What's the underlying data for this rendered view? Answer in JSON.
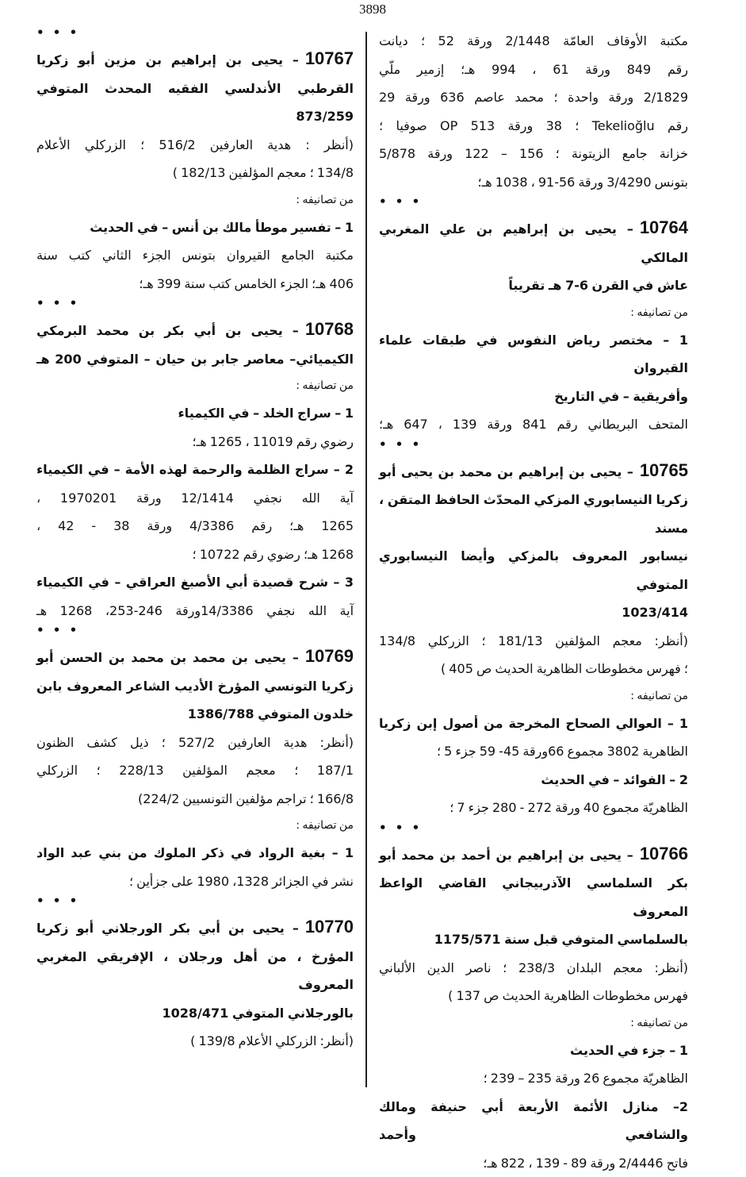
{
  "page_number": "3898",
  "dots": "• • •",
  "right_column": [
    {
      "t": "n",
      "text": "مكتبة الأوقاف العامّة 2/1448 ورقة 52 ؛ ديانت"
    },
    {
      "t": "n",
      "text": "رقم 849 ورقة 61 ، 994 هـ؛ إزمير ملّي"
    },
    {
      "t": "n",
      "text": "2/1829 ورقة واحدة ؛ محمد عاصم 636 ورقة 29"
    },
    {
      "t": "n",
      "text": "رقم Tekelioğlu ؛ 38 ورقة 513 OP صوفيا ؛"
    },
    {
      "t": "n",
      "text": "خزانة جامع الزيتونة ؛ 156 – 122 ورقة 5/878"
    },
    {
      "t": "s",
      "text": "بتونس 3/4290 ورقة 56-91 ، 1038 هـ؛"
    },
    {
      "t": "d"
    },
    {
      "t": "h",
      "num": "10764",
      "text": "– يحيى بن إبراهيم بن علي المغربي المالكي"
    },
    {
      "t": "bs",
      "text": "عاش في القرن 6-7 هـ تقريباً"
    },
    {
      "t": "m",
      "text": "من تصانيفه :"
    },
    {
      "t": "b",
      "text": "1 – مختصر رياض النفوس في طبقات علماء القيروان"
    },
    {
      "t": "bs",
      "text": "وأفريقية – في التاريخ"
    },
    {
      "t": "n",
      "text": "المتحف البريطاني رقم 841 ورقة 139 ، 647 هـ؛"
    },
    {
      "t": "d"
    },
    {
      "t": "h",
      "num": "10765",
      "text": "– يحيى بن إبراهيم بن محمد بن يحيى أبو"
    },
    {
      "t": "b",
      "text": "زكريا النيسابوري المزكي المحدّث الحافظ المتقن ، مسند"
    },
    {
      "t": "b",
      "text": "نيسابور المعروف بالمزكي وأيضا النيسابوري المتوفي"
    },
    {
      "t": "bs",
      "text": "1023/414"
    },
    {
      "t": "n",
      "text": "(أنظر: معجم المؤلفين 181/13 ؛ الزركلي 134/8"
    },
    {
      "t": "s",
      "text": "؛ فهرس مخطوطات الظاهرية الحديث ص 405 )"
    },
    {
      "t": "m",
      "text": "من تصانيفه :"
    },
    {
      "t": "b",
      "text": "1 – العوالي الصحاح المخرجة من أصول إبن زكريا"
    },
    {
      "t": "s",
      "text": "الظاهرية 3802 مجموع 66ورقة 45- 59 جزء 5 ؛"
    },
    {
      "t": "bs",
      "text": "2 – الفوائد – في الحديث"
    },
    {
      "t": "s",
      "text": "الظاهريّة مجموع 40 ورقة 272 - 280 جزء 7 ؛"
    },
    {
      "t": "d"
    },
    {
      "t": "h",
      "num": "10766",
      "text": "– يحيى بن إبراهيم بن أحمد بن محمد أبو"
    },
    {
      "t": "b",
      "text": "بكر السلماسي الآذربيجاني القاضي الواعظ المعروف"
    },
    {
      "t": "bs",
      "text": "بالسلماسي المتوفي قبل سنة 1175/571"
    },
    {
      "t": "n",
      "text": "(أنظر: معجم البلدان 238/3 ؛ ناصر الدين الألباني"
    },
    {
      "t": "s",
      "text": "فهرس مخطوطات الظاهرية الحديث ص 137 )"
    },
    {
      "t": "m",
      "text": "من تصانيفه :"
    },
    {
      "t": "bs",
      "text": "1 – جزء في الحديث"
    },
    {
      "t": "s",
      "text": "الظاهريّة مجموع 26 ورقة 235 – 239 ؛"
    },
    {
      "t": "b",
      "text": "2– منازل الأئمة الأربعة أبي حنيفة ومالك والشافعي وأحمد"
    },
    {
      "t": "s",
      "text": "فاتح 2/4446 ورقة 89 - 139 ، 822 هـ؛"
    }
  ],
  "left_column": [
    {
      "t": "d"
    },
    {
      "t": "h",
      "num": "10767",
      "text": "– يحيى بن إبراهيم بن مزين أبو زكريا"
    },
    {
      "t": "bs",
      "text": "القرطبي الأندلسي الفقيه المحدث المتوفي 873/259"
    },
    {
      "t": "n",
      "text": "(أنظر : هدية العارفين 516/2 ؛ الزركلي الأعلام"
    },
    {
      "t": "s",
      "text": "134/8 ؛ معجم المؤلفين 182/13 )"
    },
    {
      "t": "m",
      "text": "من تصانيفه :"
    },
    {
      "t": "bs",
      "text": "1 – تفسير موطأ مالك بن أنس – في الحديث"
    },
    {
      "t": "n",
      "text": "مكتبة الجامع القيروان بتونس الجزء الثاني كتب سنة"
    },
    {
      "t": "s",
      "text": "406 هـ؛ الجزء الخامس كتب سنة 399 هـ؛"
    },
    {
      "t": "d"
    },
    {
      "t": "h",
      "num": "10768",
      "text": "– يحيى بن أبي بكر بن محمد البرمكي"
    },
    {
      "t": "b",
      "text": "الكيميائي– معاصر جابر بن حيان – المتوفي 200 هـ"
    },
    {
      "t": "m",
      "text": "من تصانيفه :"
    },
    {
      "t": "bs",
      "text": "1 – سراج الخلد – في الكيمياء"
    },
    {
      "t": "s",
      "text": "رضوي رقم 11019 ، 1265 هـ؛"
    },
    {
      "t": "b",
      "text": "2 – سراج الظلمة والرحمة لهذه الأمة – في الكيمياء"
    },
    {
      "t": "n",
      "text": "آية الله نجفي 12/1414 ورقة 1970201 ،"
    },
    {
      "t": "n",
      "text": "1265 هـ؛ رقم 4/3386 ورقة 38 - 42 ،"
    },
    {
      "t": "s",
      "text": "1268 هـ؛ رضوي رقم 10722 ؛"
    },
    {
      "t": "b",
      "text": "3 – شرح قصيدة أبي الأصبغ العراقي – في الكيمياء"
    },
    {
      "t": "n",
      "text": "آية الله نجفي 14/3386ورقة 246-253، 1268 هـ"
    },
    {
      "t": "d"
    },
    {
      "t": "h",
      "num": "10769",
      "text": "– يحيى بن محمد بن محمد بن الحسن أبو"
    },
    {
      "t": "b",
      "text": "زكريا التونسي المؤرخ الأديب الشاعر المعروف بابن"
    },
    {
      "t": "bs",
      "text": "خلدون المتوفي 1386/788"
    },
    {
      "t": "n",
      "text": "(أنظر: هدية العارفين 527/2 ؛ ذيل كشف الظنون"
    },
    {
      "t": "n",
      "text": "187/1 ؛ معجم المؤلفين 228/13 ؛ الزركلي"
    },
    {
      "t": "s",
      "text": "166/8 ؛ تراجم مؤلفين التونسيين 224/2)"
    },
    {
      "t": "m",
      "text": "من تصانيفه :"
    },
    {
      "t": "b",
      "text": "1 – بغية الرواد في ذكر الملوك من بني عبد الواد"
    },
    {
      "t": "s",
      "text": "نشر في الجزائر 1328، 1980 على جزأين ؛"
    },
    {
      "t": "d"
    },
    {
      "t": "h",
      "num": "10770",
      "text": "– يحيى بن أبي بكر الورجلاني أبو زكريا"
    },
    {
      "t": "b",
      "text": "المؤرخ ، من أهل ورجلان ، الإفريقي المغربي المعروف"
    },
    {
      "t": "bs",
      "text": "بالورجلاني المتوفي 1028/471"
    },
    {
      "t": "s",
      "text": "(أنظر: الزركلي الأعلام 139/8 )"
    }
  ]
}
